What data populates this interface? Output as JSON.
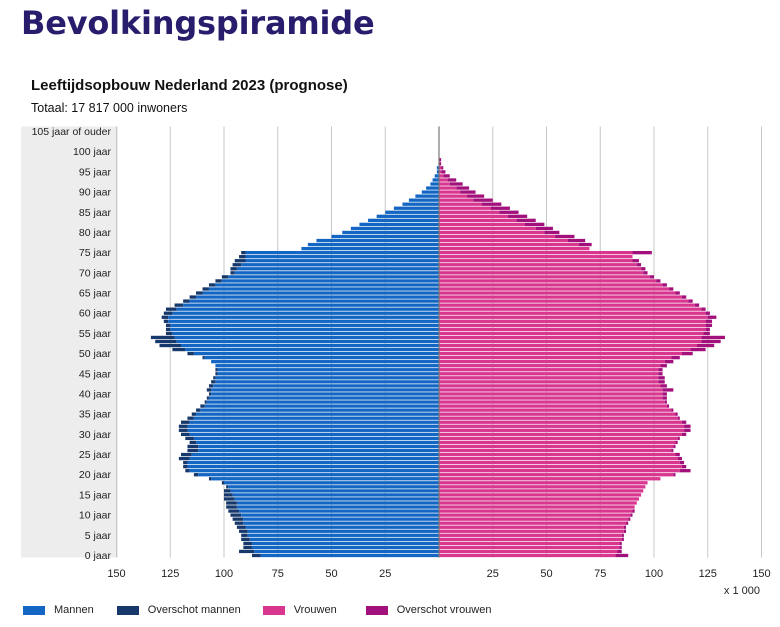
{
  "page": {
    "title": "Bevolkingspiramide",
    "subtitle": "Leeftijdsopbouw Nederland 2023 (prognose)",
    "total": "Totaal: 17 817 000 inwoners"
  },
  "colors": {
    "men": "#1366c4",
    "men_surplus": "#17386b",
    "women": "#d8368f",
    "women_surplus": "#a2107b",
    "age_band": "#ededed",
    "grid": "#c7c7c7",
    "axis": "#777777"
  },
  "chart_data": {
    "type": "bar",
    "orientation": "horizontal-pyramid",
    "title": "Leeftijdsopbouw Nederland 2023 (prognose)",
    "unit_label": "x 1 000",
    "grid": true,
    "legend_position": "bottom-left",
    "x_ticks_left": [
      "150",
      "125",
      "100",
      "75",
      "50",
      "25"
    ],
    "x_ticks_right": [
      "25",
      "50",
      "75",
      "100",
      "125",
      "150"
    ],
    "xlim": [
      0,
      150
    ],
    "age_labels": [
      "0 jaar",
      "5 jaar",
      "10 jaar",
      "15 jaar",
      "20 jaar",
      "25 jaar",
      "30 jaar",
      "35 jaar",
      "40 jaar",
      "45 jaar",
      "50 jaar",
      "55 jaar",
      "60 jaar",
      "65 jaar",
      "70 jaar",
      "75 jaar",
      "80 jaar",
      "85 jaar",
      "90 jaar",
      "95 jaar",
      "100 jaar",
      "105 jaar of ouder"
    ],
    "ages": [
      0,
      1,
      2,
      3,
      4,
      5,
      6,
      7,
      8,
      9,
      10,
      11,
      12,
      13,
      14,
      15,
      16,
      17,
      18,
      19,
      20,
      21,
      22,
      23,
      24,
      25,
      26,
      27,
      28,
      29,
      30,
      31,
      32,
      33,
      34,
      35,
      36,
      37,
      38,
      39,
      40,
      41,
      42,
      43,
      44,
      45,
      46,
      47,
      48,
      49,
      50,
      51,
      52,
      53,
      54,
      55,
      56,
      57,
      58,
      59,
      60,
      61,
      62,
      63,
      64,
      65,
      66,
      67,
      68,
      69,
      70,
      71,
      72,
      73,
      74,
      75,
      76,
      77,
      78,
      79,
      80,
      81,
      82,
      83,
      84,
      85,
      86,
      87,
      88,
      89,
      90,
      91,
      92,
      93,
      94,
      95,
      96,
      97,
      98,
      99,
      100,
      101,
      102,
      103,
      104,
      105
    ],
    "series": [
      {
        "name": "Mannen",
        "values": [
          83,
          86,
          87,
          87,
          88,
          89,
          89,
          90,
          91,
          91,
          92,
          93,
          94,
          94,
          95,
          96,
          97,
          98,
          100,
          106,
          112,
          116,
          117,
          117,
          116,
          115,
          112,
          112,
          113,
          114,
          116,
          117,
          117,
          116,
          114,
          113,
          111,
          109,
          108,
          107,
          106,
          106,
          105,
          104,
          104,
          103,
          103,
          104,
          106,
          109,
          114,
          118,
          120,
          122,
          123,
          124,
          125,
          125,
          126,
          126,
          124,
          122,
          119,
          116,
          113,
          110,
          107,
          104,
          101,
          98,
          95,
          94,
          92,
          90,
          90,
          90,
          64,
          61,
          57,
          50,
          45,
          41,
          37,
          33,
          29,
          25,
          21,
          17,
          14,
          11,
          8,
          6,
          4,
          3,
          2,
          1,
          1,
          0,
          0,
          0,
          0,
          0,
          0,
          0,
          0,
          0
        ],
        "surplus_values": [
          87,
          93,
          91,
          91,
          92,
          92,
          93,
          94,
          95,
          96,
          97,
          98,
          99,
          99,
          100,
          100,
          100,
          99,
          101,
          107,
          114,
          118,
          119,
          119,
          121,
          120,
          117,
          117,
          116,
          118,
          120,
          121,
          121,
          120,
          117,
          115,
          113,
          111,
          109,
          108,
          107,
          108,
          107,
          106,
          105,
          104,
          104,
          104,
          106,
          110,
          117,
          124,
          130,
          132,
          134,
          127,
          127,
          127,
          128,
          129,
          128,
          127,
          123,
          119,
          116,
          113,
          110,
          107,
          104,
          101,
          97,
          97,
          96,
          95,
          93,
          92,
          64,
          61,
          57,
          50,
          45,
          41,
          37,
          33,
          29,
          25,
          21,
          17,
          14,
          11,
          8,
          6,
          4,
          3,
          2,
          1,
          1,
          0,
          0,
          0,
          0,
          0,
          0,
          0,
          0,
          0
        ]
      },
      {
        "name": "Vrouwen",
        "values": [
          82,
          83,
          84,
          84,
          85,
          85,
          86,
          86,
          87,
          88,
          89,
          90,
          91,
          92,
          93,
          94,
          95,
          96,
          97,
          103,
          109,
          112,
          113,
          112,
          111,
          110,
          108,
          109,
          110,
          111,
          113,
          114,
          114,
          113,
          111,
          110,
          108,
          106,
          105,
          104,
          104,
          104,
          103,
          102,
          102,
          102,
          102,
          103,
          105,
          108,
          113,
          117,
          120,
          122,
          122,
          123,
          124,
          124,
          124,
          125,
          124,
          122,
          119,
          116,
          113,
          110,
          107,
          104,
          101,
          98,
          95,
          94,
          92,
          90,
          90,
          90,
          70,
          65,
          60,
          54,
          49,
          45,
          40,
          36,
          32,
          28,
          24,
          20,
          16,
          13,
          10,
          8,
          5,
          4,
          2,
          1,
          1,
          0,
          0,
          0,
          0,
          0,
          0,
          0,
          0,
          0
        ],
        "surplus_values": [
          88,
          85,
          85,
          85,
          86,
          86,
          87,
          87,
          88,
          89,
          90,
          91,
          91,
          92,
          93,
          94,
          95,
          96,
          97,
          103,
          110,
          117,
          115,
          114,
          113,
          112,
          109,
          110,
          111,
          112,
          115,
          117,
          117,
          115,
          112,
          111,
          109,
          107,
          106,
          106,
          106,
          109,
          106,
          105,
          105,
          104,
          104,
          106,
          109,
          112,
          118,
          124,
          128,
          131,
          133,
          126,
          126,
          127,
          127,
          129,
          126,
          124,
          121,
          118,
          115,
          112,
          109,
          106,
          103,
          100,
          97,
          96,
          94,
          93,
          89,
          99,
          70,
          71,
          68,
          63,
          56,
          53,
          49,
          45,
          41,
          37,
          33,
          29,
          25,
          21,
          17,
          14,
          11,
          8,
          5,
          3,
          2,
          1,
          1,
          0,
          0,
          0,
          0,
          0,
          0,
          0
        ]
      }
    ],
    "legend": [
      {
        "name": "Mannen",
        "color": "#1366c4"
      },
      {
        "name": "Overschot mannen",
        "color": "#17386b"
      },
      {
        "name": "Vrouwen",
        "color": "#d8368f"
      },
      {
        "name": "Overschot vrouwen",
        "color": "#a2107b"
      }
    ]
  }
}
